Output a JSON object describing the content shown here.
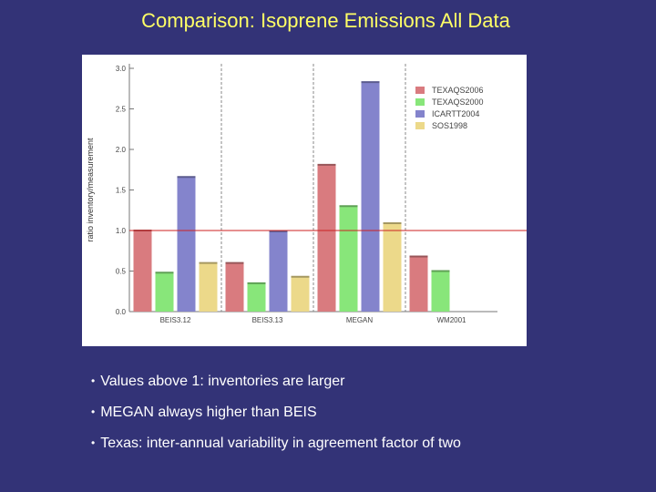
{
  "slide": {
    "title": "Comparison: Isoprene Emissions All Data",
    "bullets": [
      "Values above 1: inventories are larger",
      "MEGAN always higher than BEIS",
      "Texas: inter-annual variability in agreement factor of two"
    ]
  },
  "chart_data": {
    "type": "bar",
    "title": "",
    "xlabel": "",
    "ylabel": "ratio inventory/measurement",
    "ylim": [
      0,
      3.0
    ],
    "yticks": [
      "0.0",
      "0.5",
      "1.0",
      "1.5",
      "2.0",
      "2.5",
      "3.0"
    ],
    "grid": false,
    "reference_line": 1.0,
    "legend_position": "top-right",
    "categories": [
      "BEIS3.12",
      "BEIS3.13",
      "MEGAN",
      "WM2001"
    ],
    "series": [
      {
        "name": "TEXAQS2006",
        "color": "#d97b7f",
        "values": [
          1.0,
          0.6,
          1.81,
          0.68
        ]
      },
      {
        "name": "TEXAQS2000",
        "color": "#88e67a",
        "values": [
          0.48,
          0.35,
          1.3,
          0.5
        ]
      },
      {
        "name": "ICARTT2004",
        "color": "#8484cc",
        "values": [
          1.66,
          0.99,
          2.83,
          null
        ]
      },
      {
        "name": "SOS1998",
        "color": "#ecd98a",
        "values": [
          0.6,
          0.43,
          1.09,
          null
        ]
      }
    ],
    "colors": {
      "reference_line": "#cc2222",
      "divider": "#888888"
    }
  }
}
